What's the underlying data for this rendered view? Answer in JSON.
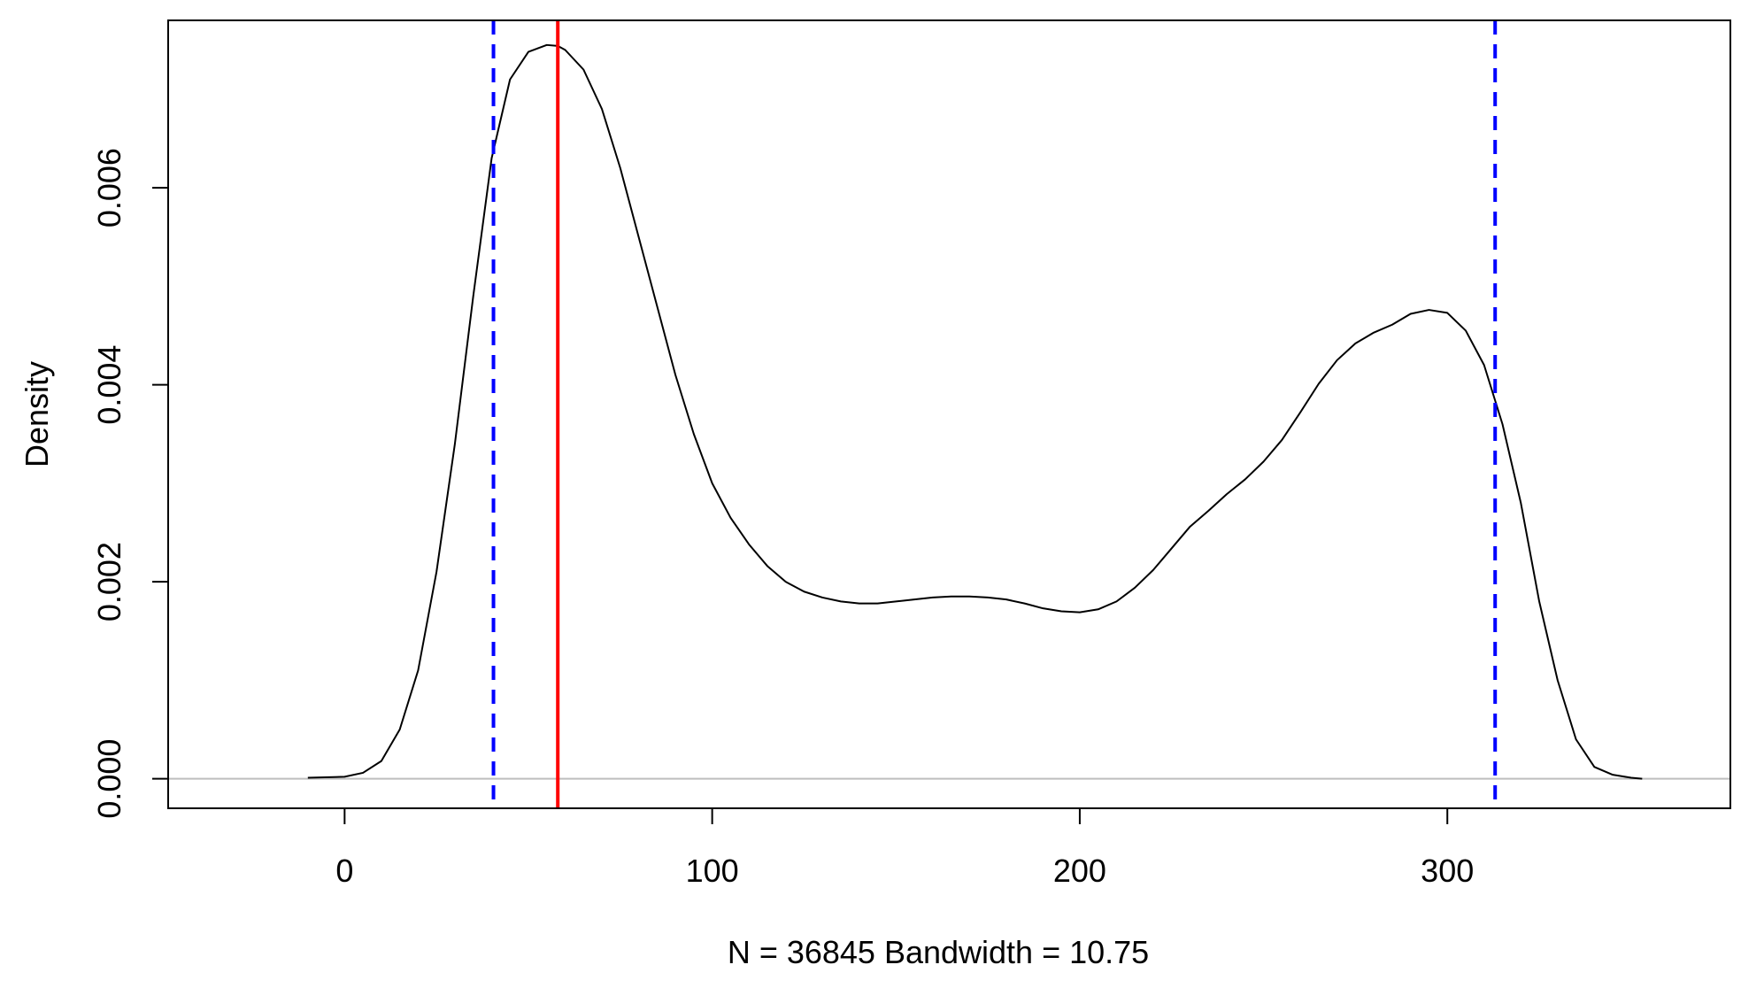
{
  "chart_data": {
    "type": "line",
    "title": "",
    "xlabel": "N = 36845   Bandwidth = 10.75",
    "ylabel": "Density",
    "xlim": [
      -48,
      377
    ],
    "ylim": [
      -0.0003,
      0.0077
    ],
    "x_ticks": [
      0,
      100,
      200,
      300
    ],
    "x_tick_labels": [
      "0",
      "100",
      "200",
      "300"
    ],
    "y_ticks": [
      0.0,
      0.002,
      0.004,
      0.006
    ],
    "y_tick_labels": [
      "0.000",
      "0.002",
      "0.004",
      "0.006"
    ],
    "grid": false,
    "legend": "none",
    "baseline": {
      "y": 0,
      "color": "#bebebe"
    },
    "series": [
      {
        "color": "#000000",
        "x": [
          -10,
          0,
          5,
          10,
          15,
          20,
          25,
          30,
          35,
          40,
          45,
          50,
          55,
          58,
          60,
          65,
          70,
          75,
          80,
          85,
          90,
          95,
          100,
          105,
          110,
          115,
          120,
          125,
          130,
          135,
          140,
          145,
          150,
          155,
          160,
          165,
          170,
          175,
          180,
          185,
          190,
          195,
          200,
          205,
          210,
          215,
          220,
          225,
          230,
          235,
          240,
          245,
          250,
          255,
          260,
          265,
          270,
          275,
          280,
          285,
          290,
          295,
          300,
          305,
          310,
          315,
          320,
          325,
          330,
          335,
          340,
          345,
          350,
          353
        ],
        "y": [
          1e-05,
          2e-05,
          6e-05,
          0.00018,
          0.0005,
          0.0011,
          0.0021,
          0.0034,
          0.0049,
          0.0063,
          0.0071,
          0.00738,
          0.00745,
          0.00744,
          0.0074,
          0.0072,
          0.0068,
          0.0062,
          0.0055,
          0.0048,
          0.0041,
          0.0035,
          0.003,
          0.00265,
          0.00238,
          0.00216,
          0.002,
          0.0019,
          0.00184,
          0.0018,
          0.00178,
          0.00178,
          0.0018,
          0.00182,
          0.00184,
          0.00185,
          0.00185,
          0.00184,
          0.00182,
          0.00178,
          0.00173,
          0.0017,
          0.00169,
          0.00172,
          0.0018,
          0.00194,
          0.00212,
          0.00234,
          0.00256,
          0.00272,
          0.00289,
          0.00304,
          0.00322,
          0.00344,
          0.00372,
          0.00401,
          0.00425,
          0.00442,
          0.00453,
          0.00461,
          0.00472,
          0.00476,
          0.00473,
          0.00455,
          0.0042,
          0.0036,
          0.0028,
          0.0018,
          0.001,
          0.0004,
          0.00012,
          4e-05,
          1e-05,
          0.0
        ]
      }
    ],
    "vlines": [
      {
        "x": 58,
        "color": "#ff0000",
        "style": "solid"
      },
      {
        "x": 40.5,
        "color": "#0000ff",
        "style": "dashed"
      },
      {
        "x": 313,
        "color": "#0000ff",
        "style": "dashed"
      }
    ]
  }
}
